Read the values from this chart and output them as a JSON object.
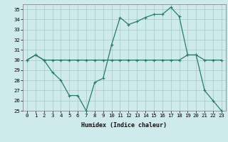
{
  "xlabel": "Humidex (Indice chaleur)",
  "x": [
    0,
    1,
    2,
    3,
    4,
    5,
    6,
    7,
    8,
    9,
    10,
    11,
    12,
    13,
    14,
    15,
    16,
    17,
    18,
    19,
    20,
    21,
    22,
    23
  ],
  "line1": [
    30.0,
    30.5,
    30.0,
    30.0,
    30.0,
    30.0,
    30.0,
    30.0,
    30.0,
    30.0,
    30.0,
    30.0,
    30.0,
    30.0,
    30.0,
    30.0,
    30.0,
    30.0,
    30.0,
    30.5,
    30.5,
    30.0,
    30.0,
    30.0
  ],
  "line2": [
    30.0,
    30.5,
    30.0,
    28.8,
    28.0,
    26.5,
    26.5,
    25.0,
    27.8,
    28.2,
    31.5,
    34.2,
    33.5,
    33.8,
    34.2,
    34.5,
    34.5,
    35.2,
    34.3,
    30.5,
    30.5,
    27.0,
    26.0,
    25.0
  ],
  "line_color": "#2a7a6e",
  "bg_color": "#ceeaea",
  "grid_color": "#aacece",
  "ylim_min": 25,
  "ylim_max": 35.5,
  "yticks": [
    25,
    26,
    27,
    28,
    29,
    30,
    31,
    32,
    33,
    34,
    35
  ],
  "xlim_min": -0.5,
  "xlim_max": 23.5,
  "xlabel_fontsize": 6.0,
  "tick_fontsize": 5.2
}
